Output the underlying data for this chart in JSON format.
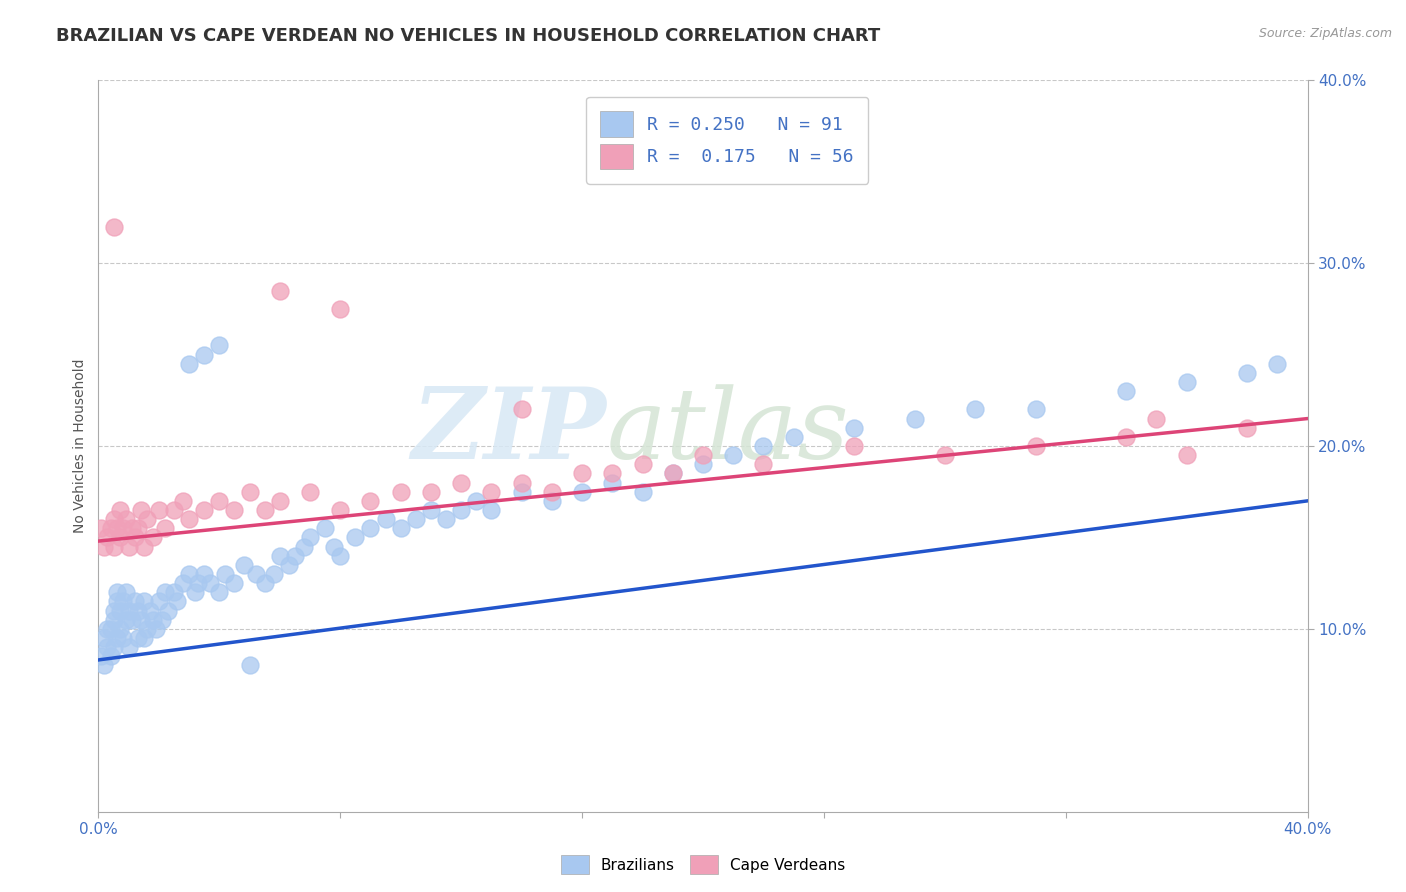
{
  "title": "BRAZILIAN VS CAPE VERDEAN NO VEHICLES IN HOUSEHOLD CORRELATION CHART",
  "source_text": "Source: ZipAtlas.com",
  "ylabel": "No Vehicles in Household",
  "xlim": [
    0.0,
    0.4
  ],
  "ylim": [
    0.0,
    0.4
  ],
  "ytick_labels_right": [
    "10.0%",
    "20.0%",
    "30.0%",
    "40.0%"
  ],
  "ytick_positions_right": [
    0.1,
    0.2,
    0.3,
    0.4
  ],
  "watermark_zip": "ZIP",
  "watermark_atlas": "atlas",
  "legend_label_br": "R = 0.250   N = 91",
  "legend_label_cv": "R =  0.175   N = 56",
  "legend_label_br_bottom": "Brazilians",
  "legend_label_cv_bottom": "Cape Verdeans",
  "brazilian_color": "#a8c8f0",
  "capeverdean_color": "#f0a0b8",
  "brazilian_line_color": "#2255cc",
  "capeverdean_line_color": "#dd4477",
  "background_color": "#ffffff",
  "grid_color": "#bbbbbb",
  "title_color": "#333333",
  "title_fontsize": 13,
  "axis_label_fontsize": 10,
  "tick_fontsize": 11,
  "brazilian_x": [
    0.001,
    0.002,
    0.002,
    0.003,
    0.003,
    0.004,
    0.004,
    0.005,
    0.005,
    0.005,
    0.006,
    0.006,
    0.006,
    0.007,
    0.007,
    0.008,
    0.008,
    0.009,
    0.009,
    0.01,
    0.01,
    0.011,
    0.012,
    0.013,
    0.013,
    0.014,
    0.015,
    0.015,
    0.016,
    0.017,
    0.018,
    0.019,
    0.02,
    0.021,
    0.022,
    0.023,
    0.025,
    0.026,
    0.028,
    0.03,
    0.032,
    0.033,
    0.035,
    0.037,
    0.04,
    0.042,
    0.045,
    0.048,
    0.05,
    0.052,
    0.055,
    0.058,
    0.06,
    0.063,
    0.065,
    0.068,
    0.07,
    0.075,
    0.078,
    0.08,
    0.085,
    0.09,
    0.095,
    0.1,
    0.105,
    0.11,
    0.115,
    0.12,
    0.125,
    0.13,
    0.14,
    0.15,
    0.16,
    0.17,
    0.18,
    0.19,
    0.2,
    0.21,
    0.22,
    0.23,
    0.25,
    0.27,
    0.29,
    0.31,
    0.34,
    0.36,
    0.38,
    0.39,
    0.03,
    0.035,
    0.04
  ],
  "brazilian_y": [
    0.085,
    0.08,
    0.095,
    0.09,
    0.1,
    0.085,
    0.1,
    0.09,
    0.105,
    0.11,
    0.095,
    0.115,
    0.12,
    0.1,
    0.11,
    0.095,
    0.115,
    0.105,
    0.12,
    0.09,
    0.11,
    0.105,
    0.115,
    0.095,
    0.11,
    0.105,
    0.095,
    0.115,
    0.1,
    0.11,
    0.105,
    0.1,
    0.115,
    0.105,
    0.12,
    0.11,
    0.12,
    0.115,
    0.125,
    0.13,
    0.12,
    0.125,
    0.13,
    0.125,
    0.12,
    0.13,
    0.125,
    0.135,
    0.08,
    0.13,
    0.125,
    0.13,
    0.14,
    0.135,
    0.14,
    0.145,
    0.15,
    0.155,
    0.145,
    0.14,
    0.15,
    0.155,
    0.16,
    0.155,
    0.16,
    0.165,
    0.16,
    0.165,
    0.17,
    0.165,
    0.175,
    0.17,
    0.175,
    0.18,
    0.175,
    0.185,
    0.19,
    0.195,
    0.2,
    0.205,
    0.21,
    0.215,
    0.22,
    0.22,
    0.23,
    0.235,
    0.24,
    0.245,
    0.245,
    0.25,
    0.255
  ],
  "capeverdean_x": [
    0.001,
    0.002,
    0.003,
    0.004,
    0.005,
    0.005,
    0.006,
    0.007,
    0.007,
    0.008,
    0.009,
    0.01,
    0.011,
    0.012,
    0.013,
    0.014,
    0.015,
    0.016,
    0.018,
    0.02,
    0.022,
    0.025,
    0.028,
    0.03,
    0.035,
    0.04,
    0.045,
    0.05,
    0.055,
    0.06,
    0.07,
    0.08,
    0.09,
    0.1,
    0.11,
    0.12,
    0.13,
    0.14,
    0.15,
    0.16,
    0.17,
    0.18,
    0.19,
    0.2,
    0.22,
    0.25,
    0.28,
    0.31,
    0.34,
    0.36,
    0.005,
    0.06,
    0.08,
    0.14,
    0.35,
    0.38
  ],
  "capeverdean_y": [
    0.155,
    0.145,
    0.15,
    0.155,
    0.145,
    0.16,
    0.155,
    0.15,
    0.165,
    0.155,
    0.16,
    0.145,
    0.155,
    0.15,
    0.155,
    0.165,
    0.145,
    0.16,
    0.15,
    0.165,
    0.155,
    0.165,
    0.17,
    0.16,
    0.165,
    0.17,
    0.165,
    0.175,
    0.165,
    0.17,
    0.175,
    0.165,
    0.17,
    0.175,
    0.175,
    0.18,
    0.175,
    0.18,
    0.175,
    0.185,
    0.185,
    0.19,
    0.185,
    0.195,
    0.19,
    0.2,
    0.195,
    0.2,
    0.205,
    0.195,
    0.32,
    0.285,
    0.275,
    0.22,
    0.215,
    0.21
  ],
  "br_line_x0": 0.0,
  "br_line_x1": 0.4,
  "br_line_y0": 0.083,
  "br_line_y1": 0.17,
  "cv_line_x0": 0.0,
  "cv_line_x1": 0.4,
  "cv_line_y0": 0.148,
  "cv_line_y1": 0.215
}
